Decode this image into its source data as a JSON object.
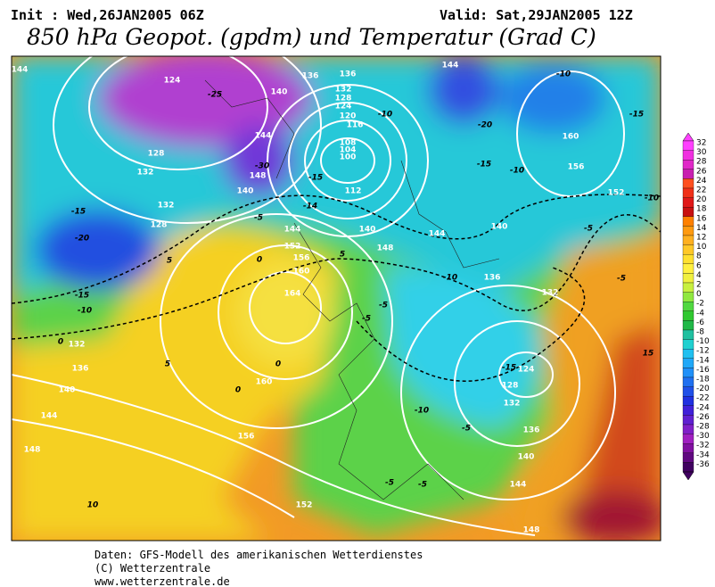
{
  "header": {
    "init": "Init : Wed,26JAN2005 06Z",
    "valid": "Valid: Sat,29JAN2005 12Z",
    "title": "850 hPa Geopot. (gpdm) und Temperatur (Grad C)"
  },
  "map": {
    "contour_labels": [
      "144",
      "124",
      "-25",
      "140",
      "136",
      "136",
      "132",
      "128",
      "124",
      "120",
      "116",
      "108",
      "104",
      "100",
      "-10",
      "144",
      "-10",
      "-15",
      "-20",
      "160",
      "156",
      "-15",
      "-10",
      "152",
      "-10",
      "128",
      "132",
      "144",
      "-30",
      "148",
      "140",
      "-15",
      "112",
      "-14",
      "132",
      "128",
      "-15",
      "-20",
      "-5",
      "144",
      "140",
      "148",
      "144",
      "140",
      "-5",
      "152",
      "156",
      "160",
      "0",
      "5",
      "5",
      "164",
      "-10",
      "136",
      "132",
      "-5",
      "-15",
      "-10",
      "0",
      "132",
      "136",
      "140",
      "144",
      "148",
      "5",
      "0",
      "160",
      "0",
      "156",
      "-5",
      "-5",
      "124",
      "-15",
      "128",
      "132",
      "-10",
      "-5",
      "136",
      "140",
      "144",
      "-5",
      "-5",
      "152",
      "148",
      "15",
      "10"
    ]
  },
  "colorbar": {
    "labels": [
      32,
      30,
      28,
      26,
      24,
      22,
      20,
      18,
      16,
      14,
      12,
      10,
      8,
      6,
      4,
      2,
      0,
      -2,
      -4,
      -6,
      -8,
      -10,
      -12,
      -14,
      -16,
      -18,
      -20,
      -22,
      -24,
      -26,
      -28,
      -30,
      -32,
      -34,
      -36
    ]
  },
  "footer": {
    "lines": [
      "Daten: GFS-Modell des amerikanischen Wetterdienstes",
      "(C) Wetterzentrale",
      "www.wetterzentrale.de"
    ]
  }
}
